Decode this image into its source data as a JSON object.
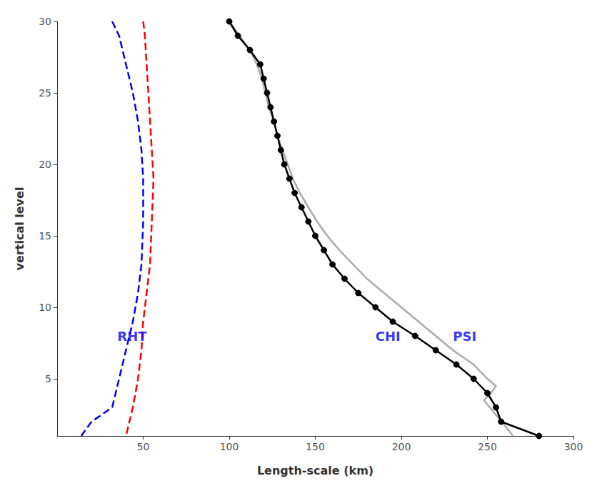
{
  "chart_data": {
    "type": "line",
    "xlabel": "Length-scale (km)",
    "ylabel": "vertical level",
    "xlim": [
      0,
      300
    ],
    "ylim": [
      1,
      30
    ],
    "xticks": [
      50,
      100,
      150,
      200,
      250,
      300
    ],
    "yticks": [
      5,
      10,
      15,
      20,
      25,
      30
    ],
    "grid": false,
    "series": [
      {
        "color": "#aaaaaa",
        "marker": "none",
        "line_style": "solid",
        "x": [
          100,
          106,
          112,
          116,
          119,
          121,
          123,
          126,
          128,
          131,
          134,
          137,
          141,
          146,
          151,
          157,
          164,
          172,
          180,
          190,
          200,
          210,
          220,
          230,
          242,
          250,
          255,
          252,
          248,
          265
        ],
        "values": [
          30,
          29,
          28,
          27,
          26,
          25,
          24,
          23,
          22,
          21,
          20,
          19,
          18,
          17,
          16,
          15,
          14,
          13,
          12,
          11,
          10,
          9,
          8,
          7,
          6,
          5,
          4.5,
          4,
          3.5,
          1
        ]
      },
      {
        "color": "#000000",
        "marker": "circle",
        "line_style": "solid",
        "x": [
          100,
          105,
          112,
          118,
          120,
          122,
          124,
          126,
          128,
          130,
          132,
          135,
          138,
          142,
          146,
          150,
          155,
          160,
          167,
          175,
          185,
          195,
          208,
          220,
          232,
          242,
          250,
          255,
          258,
          280
        ],
        "values": [
          30,
          29,
          28,
          27,
          26,
          25,
          24,
          23,
          22,
          21,
          20,
          19,
          18,
          17,
          16,
          15,
          14,
          13,
          12,
          11,
          10,
          9,
          8,
          7,
          6,
          5,
          4,
          3,
          2,
          1
        ]
      },
      {
        "color": "#0000ff",
        "marker": "none",
        "line_style": "dashed",
        "x": [
          32,
          36,
          40,
          44,
          47,
          49,
          50,
          50,
          49,
          47,
          44,
          40,
          36,
          32,
          26,
          20,
          14
        ],
        "values": [
          30,
          29,
          27,
          25,
          23,
          21,
          19,
          16,
          13,
          11,
          9,
          7,
          5,
          3,
          2.5,
          2,
          1
        ]
      },
      {
        "color": "#ff0000",
        "marker": "none",
        "line_style": "dashed",
        "x": [
          50,
          51,
          52,
          53,
          54,
          55,
          56,
          55,
          54,
          53,
          52,
          51,
          50,
          49,
          47,
          44,
          40
        ],
        "values": [
          30,
          29,
          27,
          25,
          23,
          21,
          19,
          16,
          13,
          12,
          11,
          10,
          9,
          7,
          5,
          3,
          1
        ]
      }
    ],
    "annotations": [
      {
        "text": "RHT",
        "x": 35,
        "y": 8,
        "color": "#0000ff"
      },
      {
        "text": "CHI",
        "x": 185,
        "y": 8,
        "color": "#0000ff"
      },
      {
        "text": "PSI",
        "x": 230,
        "y": 8,
        "color": "#0000ff"
      }
    ]
  }
}
